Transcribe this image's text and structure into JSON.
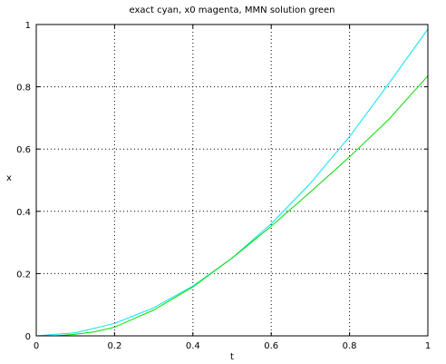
{
  "chart_data": {
    "type": "line",
    "title": "exact cyan, x0 magenta, MMN solution green",
    "xlabel": "t",
    "ylabel": "x",
    "xlim": [
      0,
      1
    ],
    "ylim": [
      0,
      1
    ],
    "xticks": [
      "0",
      "0.2",
      "0.4",
      "0.6",
      "0.8",
      "1"
    ],
    "yticks": [
      "0",
      "0.2",
      "0.4",
      "0.6",
      "0.8",
      "1"
    ],
    "grid": true,
    "series": [
      {
        "color": "#00e5ee",
        "x": [
          0,
          0.1,
          0.2,
          0.3,
          0.4,
          0.5,
          0.6,
          0.7,
          0.8,
          0.9,
          1.0
        ],
        "y": [
          0.0,
          0.01,
          0.04,
          0.09,
          0.16,
          0.25,
          0.36,
          0.49,
          0.64,
          0.81,
          0.985
        ]
      },
      {
        "color": "#cc00cc",
        "x": [
          0,
          1
        ],
        "y": [
          0,
          0
        ]
      },
      {
        "color": "#00dd00",
        "x": [
          0,
          0.05,
          0.1,
          0.15,
          0.2,
          0.3,
          0.4,
          0.5,
          0.6,
          0.7,
          0.8,
          0.9,
          1.0
        ],
        "y": [
          0.0,
          0.0,
          0.005,
          0.013,
          0.028,
          0.083,
          0.157,
          0.25,
          0.352,
          0.462,
          0.575,
          0.695,
          0.835
        ]
      }
    ]
  }
}
